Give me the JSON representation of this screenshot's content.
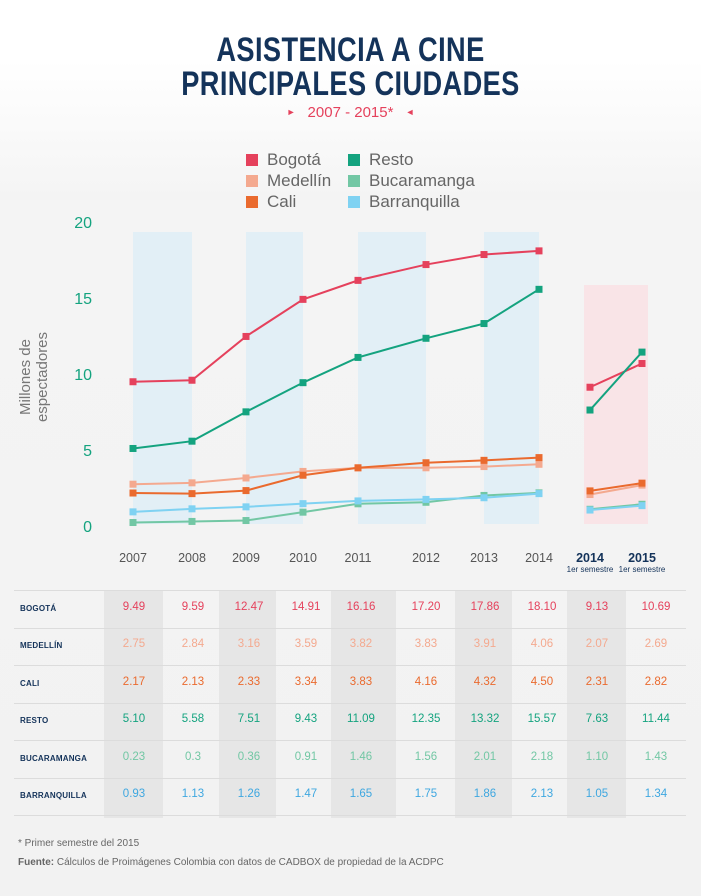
{
  "title_line1": "ASISTENCIA A CINE",
  "title_line2": "PRINCIPALES CIUDADES",
  "subtitle": "2007 - 2015*",
  "legend": [
    {
      "label": "Bogotá",
      "color": "#e5415c"
    },
    {
      "label": "Resto",
      "color": "#14a37f"
    },
    {
      "label": "Medellín",
      "color": "#f4a98f"
    },
    {
      "label": "Bucaramanga",
      "color": "#72c7a4"
    },
    {
      "label": "Cali",
      "color": "#ea6a2e"
    },
    {
      "label": "Barranquilla",
      "color": "#7fd2f2"
    }
  ],
  "footnote": "* Primer semestre del 2015",
  "source_label": "Fuente:",
  "source_text": " Cálculos de Proimágenes Colombia con datos de CADBOX de propiedad de la ACDPC",
  "chart_data": {
    "type": "line",
    "ylabel": "Millones de espectadores",
    "ylim": [
      0,
      20
    ],
    "yticks": [
      0,
      5,
      10,
      15,
      20
    ],
    "categories": [
      "2007",
      "2008",
      "2009",
      "2010",
      "2011",
      "2012",
      "2013",
      "2014",
      "2014",
      "2015"
    ],
    "category_sublabels": [
      "",
      "",
      "",
      "",
      "",
      "",
      "",
      "",
      "1er semestre",
      "1er semestre"
    ],
    "series": [
      {
        "name": "Bogotá",
        "color": "#e5415c",
        "text_color": "#e5415c",
        "values": [
          9.49,
          9.59,
          12.47,
          14.91,
          16.16,
          17.2,
          17.86,
          18.1,
          9.13,
          10.69
        ],
        "labels": [
          "9.49",
          "9.59",
          "12.47",
          "14.91",
          "16.16",
          "17.20",
          "17.86",
          "18.10",
          "9.13",
          "10.69"
        ]
      },
      {
        "name": "Medellín",
        "color": "#f4a98f",
        "text_color": "#f4a98f",
        "values": [
          2.75,
          2.84,
          3.16,
          3.59,
          3.82,
          3.83,
          3.91,
          4.06,
          2.07,
          2.69
        ],
        "labels": [
          "2.75",
          "2.84",
          "3.16",
          "3.59",
          "3.82",
          "3.83",
          "3.91",
          "4.06",
          "2.07",
          "2.69"
        ]
      },
      {
        "name": "Cali",
        "color": "#ea6a2e",
        "text_color": "#ea6a2e",
        "values": [
          2.17,
          2.13,
          2.33,
          3.34,
          3.83,
          4.16,
          4.32,
          4.5,
          2.31,
          2.82
        ],
        "labels": [
          "2.17",
          "2.13",
          "2.33",
          "3.34",
          "3.83",
          "4.16",
          "4.32",
          "4.50",
          "2.31",
          "2.82"
        ]
      },
      {
        "name": "Resto",
        "color": "#14a37f",
        "text_color": "#14a37f",
        "values": [
          5.1,
          5.58,
          7.51,
          9.43,
          11.09,
          12.35,
          13.32,
          15.57,
          7.63,
          11.44
        ],
        "labels": [
          "5.10",
          "5.58",
          "7.51",
          "9.43",
          "11.09",
          "12.35",
          "13.32",
          "15.57",
          "7.63",
          "11.44"
        ]
      },
      {
        "name": "Bucaramanga",
        "color": "#72c7a4",
        "text_color": "#72c7a4",
        "values": [
          0.23,
          0.3,
          0.36,
          0.91,
          1.46,
          1.56,
          2.01,
          2.18,
          1.1,
          1.43
        ],
        "labels": [
          "0.23",
          "0.3",
          "0.36",
          "0.91",
          "1.46",
          "1.56",
          "2.01",
          "2.18",
          "1.10",
          "1.43"
        ]
      },
      {
        "name": "Barranquilla",
        "color": "#7fd2f2",
        "text_color": "#3ea7e0",
        "values": [
          0.93,
          1.13,
          1.26,
          1.47,
          1.65,
          1.75,
          1.86,
          2.13,
          1.05,
          1.34
        ],
        "labels": [
          "0.93",
          "1.13",
          "1.26",
          "1.47",
          "1.65",
          "1.75",
          "1.86",
          "2.13",
          "1.05",
          "1.34"
        ]
      }
    ],
    "table_row_labels": [
      "BOGOTÁ",
      "MEDELLÍN",
      "CALI",
      "RESTO",
      "BUCARAMANGA",
      "BARRANQUILLA"
    ]
  }
}
